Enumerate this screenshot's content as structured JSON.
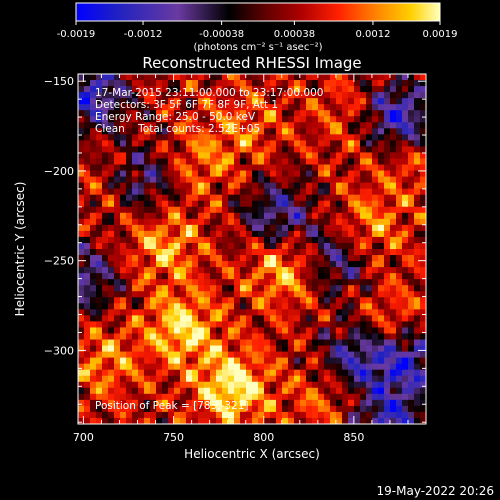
{
  "colors": {
    "background": "#000000",
    "foreground": "#ffffff",
    "colormap": [
      "#0000ff",
      "#2222c0",
      "#6a3aa0",
      "#000000",
      "#600000",
      "#b00000",
      "#ff2000",
      "#ff8000",
      "#ffd000",
      "#ffffa0"
    ]
  },
  "colorbar": {
    "ticks": [
      "-0.0019",
      "-0.0012",
      "-0.00038",
      "0.00038",
      "0.0012",
      "0.0019"
    ],
    "tick_values": [
      -0.0019,
      -0.0012,
      -0.00038,
      0.00038,
      0.0012,
      0.0019
    ],
    "range": [
      -0.0019,
      0.0019
    ],
    "units_label": "(photons cm⁻² s⁻¹ asec⁻²)"
  },
  "info": {
    "line1": "17-Mar-2015 23:11:00.000 to 23:17:00.000",
    "line2": "Detectors: 3F 5F 6F 7F 8F 9F, Att 1",
    "line3": "Energy Range: 25.0 - 50.0 keV",
    "line4": "Clean    Total counts: 2.52E+05",
    "peak": "Position of Peak = [783,-321]"
  },
  "footer": {
    "date": "19-May-2022 20:26"
  },
  "chart_data": {
    "type": "heatmap",
    "title": "Reconstructed RHESSI Image",
    "xlabel": "Heliocentric X (arcsec)",
    "ylabel": "Heliocentric Y (arcsec)",
    "xlim": [
      697,
      890
    ],
    "ylim": [
      -341,
      -146
    ],
    "x_ticks": [
      700,
      750,
      800,
      850
    ],
    "x_tick_labels": [
      "700",
      "750",
      "800",
      "850"
    ],
    "y_ticks": [
      -150,
      -200,
      -250,
      -300
    ],
    "y_tick_labels": [
      "−150",
      "−200",
      "−250",
      "−300"
    ],
    "value_range": [
      -0.0019,
      0.0019
    ],
    "peak_position": [
      783,
      -321
    ],
    "total_counts": 252000,
    "energy_range_kev": [
      25.0,
      50.0
    ],
    "colormap": "blue-purple-black-red-orange-yellow-white",
    "bright_regions": [
      {
        "x": 783,
        "y": -321,
        "value": 0.0019
      },
      {
        "x": 755,
        "y": -288,
        "value": 0.0017
      },
      {
        "x": 812,
        "y": -254,
        "value": 0.0016
      },
      {
        "x": 745,
        "y": -242,
        "value": 0.0014
      },
      {
        "x": 720,
        "y": -206,
        "value": 0.0012
      },
      {
        "x": 765,
        "y": -195,
        "value": 0.0011
      },
      {
        "x": 858,
        "y": -232,
        "value": 0.0013
      },
      {
        "x": 872,
        "y": -285,
        "value": 0.0012
      },
      {
        "x": 835,
        "y": -325,
        "value": 0.0011
      },
      {
        "x": 712,
        "y": -306,
        "value": 0.0012
      },
      {
        "x": 790,
        "y": -175,
        "value": 0.001
      },
      {
        "x": 845,
        "y": -168,
        "value": 0.0009
      },
      {
        "x": 880,
        "y": -195,
        "value": 0.001
      }
    ],
    "dark_regions": [
      {
        "x": 705,
        "y": -158,
        "value": -0.0012
      },
      {
        "x": 730,
        "y": -205,
        "value": -0.0011
      },
      {
        "x": 875,
        "y": -170,
        "value": -0.0013
      },
      {
        "x": 880,
        "y": -305,
        "value": -0.0012
      },
      {
        "x": 850,
        "y": -305,
        "value": -0.001
      },
      {
        "x": 870,
        "y": -340,
        "value": -0.0011
      },
      {
        "x": 808,
        "y": -225,
        "value": -0.0009
      },
      {
        "x": 840,
        "y": -250,
        "value": -0.0008
      },
      {
        "x": 700,
        "y": -260,
        "value": -0.0008
      }
    ]
  }
}
